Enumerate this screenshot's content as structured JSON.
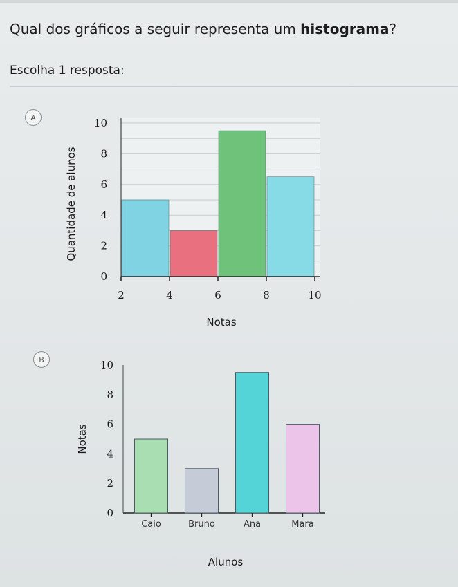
{
  "question": {
    "prefix": "Qual dos gráficos a seguir representa um ",
    "emphasis": "histograma",
    "suffix": "?"
  },
  "instruction": "Escolha 1 resposta:",
  "options": [
    {
      "letter": "A"
    },
    {
      "letter": "B"
    }
  ],
  "chart_data": [
    {
      "type": "bar",
      "variant": "histogram",
      "xlabel": "Notas",
      "ylabel": "Quantidade de alunos",
      "x_ticks": [
        "2",
        "4",
        "6",
        "8",
        "10"
      ],
      "y_ticks": [
        "0",
        "2",
        "4",
        "6",
        "8",
        "10"
      ],
      "ylim": [
        0,
        10
      ],
      "xlim": [
        2,
        10
      ],
      "grid": true,
      "bins": [
        {
          "from": 2,
          "to": 4,
          "value": 5,
          "color": "#7fd3e3"
        },
        {
          "from": 4,
          "to": 6,
          "value": 3,
          "color": "#e8707f"
        },
        {
          "from": 6,
          "to": 8,
          "value": 9.5,
          "color": "#6fc27a"
        },
        {
          "from": 8,
          "to": 10,
          "value": 6.5,
          "color": "#86dbe6"
        }
      ]
    },
    {
      "type": "bar",
      "xlabel": "Alunos",
      "ylabel": "Notas",
      "categories": [
        "Caio",
        "Bruno",
        "Ana",
        "Mara"
      ],
      "values": [
        5,
        3,
        9.5,
        6
      ],
      "colors": [
        "#a9ddb2",
        "#c5ccd8",
        "#54d4d7",
        "#ecc4ea"
      ],
      "y_ticks": [
        "0",
        "2",
        "4",
        "6",
        "8",
        "10"
      ],
      "ylim": [
        0,
        10
      ],
      "grid": false
    }
  ]
}
